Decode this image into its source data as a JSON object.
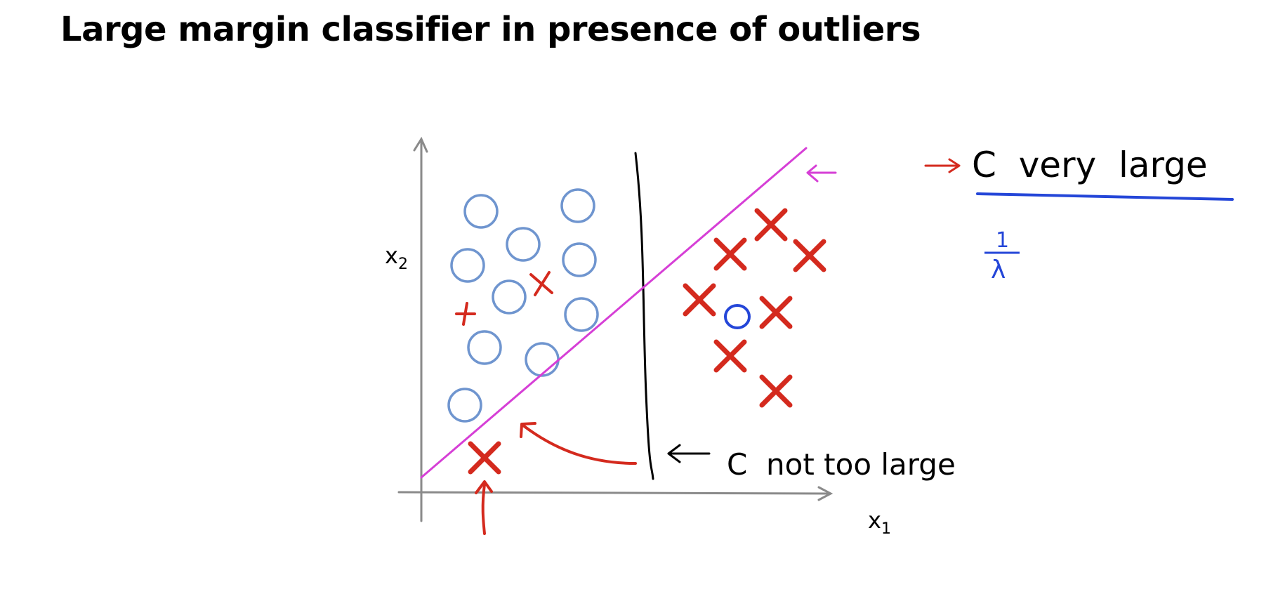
{
  "slide": {
    "title": "Large margin classifier in presence of outliers"
  },
  "plot": {
    "x_axis_label": "x",
    "x_axis_subscript": "1",
    "y_axis_label": "x",
    "y_axis_subscript": "2",
    "colors": {
      "axis": "#8a8a8a",
      "positive": "#d42a1e",
      "negative": "#6f95cf",
      "outlier_negative": "#2446d8",
      "boundary_large_c": "#d63fd6",
      "boundary_small_c": "#000000",
      "annotation_red": "#d42a1e",
      "annotation_blue": "#2446d8"
    }
  },
  "annotations": {
    "c_very_large": "C  very  large",
    "c_not_too_large": "C  not too large",
    "lambda_fraction_num": "1",
    "lambda_fraction_den": "λ"
  }
}
